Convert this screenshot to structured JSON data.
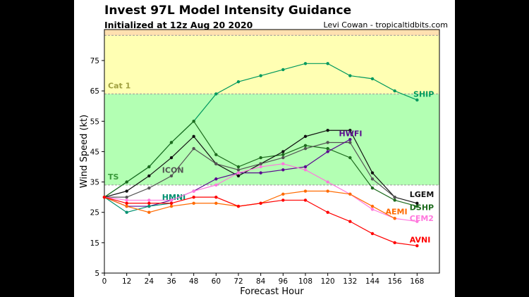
{
  "chart_data": {
    "type": "line",
    "title": "Invest 97L Model Intensity Guidance",
    "subtitle": "Initialized at 12z Aug 20 2020",
    "credit": "Levi Cowan - tropicaltidbits.com",
    "xlabel": "Forecast Hour",
    "ylabel": "Wind Speed (kt)",
    "xlim": [
      0,
      180
    ],
    "ylim": [
      5,
      85.2
    ],
    "xticks": [
      0,
      12,
      24,
      36,
      48,
      60,
      72,
      84,
      96,
      108,
      120,
      132,
      144,
      156,
      168
    ],
    "yticks": [
      5,
      15,
      25,
      35,
      45,
      55,
      65,
      75
    ],
    "grid": false,
    "bands": [
      {
        "label": "",
        "from": 5,
        "to": 34,
        "color": "#ffffff"
      },
      {
        "label": "TS",
        "from": 34,
        "to": 64,
        "color": "#b3ffb3",
        "label_color": "#3a9a3a"
      },
      {
        "label": "Cat 1",
        "from": 64,
        "to": 83.3,
        "color": "#ffffb3",
        "label_color": "#a0a040"
      },
      {
        "label": "",
        "from": 83.3,
        "to": 85.2,
        "color": "#ffe0b0"
      }
    ],
    "series": [
      {
        "name": "SHIP",
        "color": "#00995e",
        "label_at": [
          166,
          64
        ],
        "x": [
          0,
          12,
          24,
          36,
          48,
          60,
          72,
          84,
          96,
          108,
          120,
          132,
          144,
          156,
          168
        ],
        "values": [
          30,
          35,
          40,
          48,
          55,
          64,
          68,
          70,
          72,
          74,
          74,
          70,
          69,
          65,
          62
        ]
      },
      {
        "name": "DSHP",
        "color": "#1d6b1d",
        "label_at": [
          164,
          28.3
        ],
        "x": [
          0,
          12,
          24,
          36,
          48,
          60,
          72,
          84,
          96,
          108,
          120,
          132,
          144,
          156,
          168
        ],
        "values": [
          30,
          35,
          40,
          48,
          55,
          44,
          40,
          43,
          44,
          47,
          46,
          43,
          33,
          29,
          27
        ]
      },
      {
        "name": "LGEM",
        "color": "#111111",
        "label_at": [
          164,
          29.8
        ],
        "x": [
          0,
          12,
          24,
          36,
          48,
          60,
          72,
          84,
          96,
          108,
          120,
          132,
          144,
          156,
          168
        ],
        "values": [
          30,
          32,
          37,
          43,
          50,
          41,
          37,
          41,
          45,
          50,
          52,
          52,
          38,
          30,
          28
        ]
      },
      {
        "name": "ICON",
        "color": "#555555",
        "label_at": [
          31,
          39
        ],
        "x": [
          0,
          12,
          24,
          36,
          48,
          60,
          72,
          84,
          96,
          108,
          120,
          132,
          144,
          156
        ],
        "values": [
          30,
          30,
          33,
          37,
          46,
          41,
          39,
          41,
          43,
          46,
          48,
          48,
          36,
          30
        ]
      },
      {
        "name": "HWFI",
        "color": "#5a0a8f",
        "label_at": [
          126,
          51
        ],
        "x": [
          0,
          12,
          24,
          36,
          48,
          60,
          72,
          84,
          96,
          108,
          120,
          132
        ],
        "values": [
          30,
          27,
          27,
          29,
          32,
          36,
          38,
          38,
          39,
          40,
          45,
          49
        ]
      },
      {
        "name": "HMNI",
        "color": "#009070",
        "label_at": [
          31,
          30
        ],
        "x": [
          0,
          12,
          24,
          36
        ],
        "values": [
          30,
          25,
          27,
          28
        ]
      },
      {
        "name": "CEM2",
        "color": "#ff77dd",
        "label_at": [
          164,
          24
        ],
        "x": [
          0,
          12,
          24,
          36,
          48,
          60,
          72,
          84,
          96,
          108,
          120,
          132,
          144,
          156,
          168
        ],
        "values": [
          30,
          29,
          29,
          29,
          32,
          34,
          38,
          40,
          41,
          39,
          35,
          31,
          26,
          23,
          22
        ]
      },
      {
        "name": "AEMI",
        "color": "#ff6a00",
        "label_at": [
          151,
          25.3
        ],
        "x": [
          0,
          12,
          24,
          36,
          48,
          60,
          72,
          84,
          96,
          108,
          120,
          132,
          144,
          156
        ],
        "values": [
          30,
          27,
          25,
          27,
          28,
          28,
          27,
          28,
          31,
          32,
          32,
          31,
          27,
          23
        ]
      },
      {
        "name": "AVNI",
        "color": "#ff0000",
        "label_at": [
          164,
          16
        ],
        "x": [
          0,
          12,
          24,
          36,
          48,
          60,
          72,
          84,
          96,
          108,
          120,
          132,
          144,
          156,
          168
        ],
        "values": [
          30,
          28,
          28,
          28,
          30,
          30,
          27,
          28,
          29,
          29,
          25,
          22,
          18,
          15,
          14
        ]
      }
    ]
  }
}
